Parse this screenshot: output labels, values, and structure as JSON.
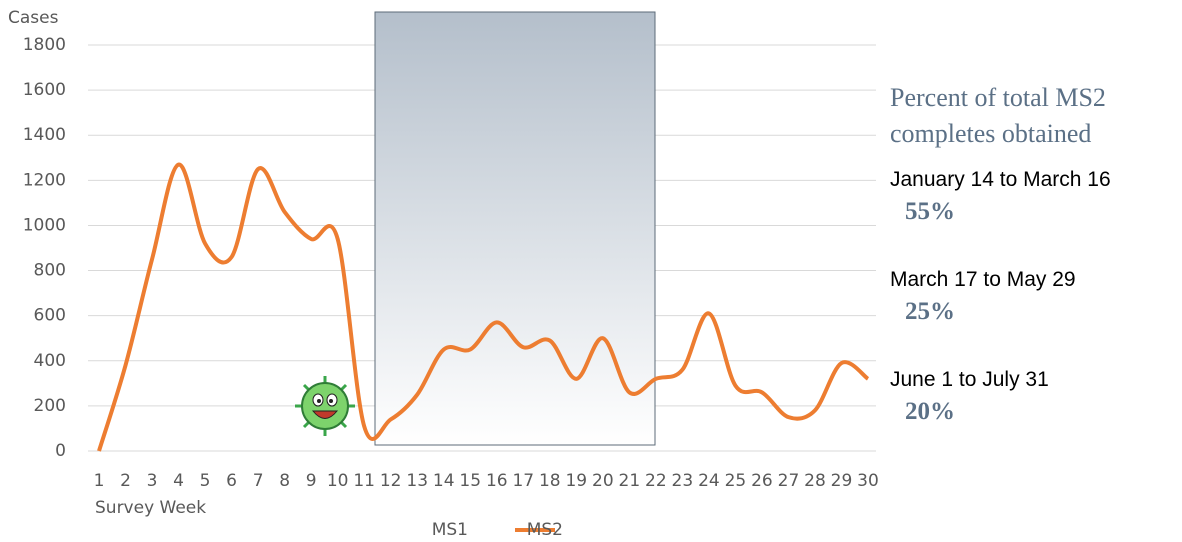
{
  "chart_data": {
    "type": "line",
    "y_label": "Cases",
    "x_label": "Survey Week",
    "x": [
      1,
      2,
      3,
      4,
      5,
      6,
      7,
      8,
      9,
      10,
      11,
      12,
      13,
      14,
      15,
      16,
      17,
      18,
      19,
      20,
      21,
      22,
      23,
      24,
      25,
      26,
      27,
      28,
      29,
      30
    ],
    "xlim": [
      1,
      30
    ],
    "xticks": [
      1,
      2,
      3,
      4,
      5,
      6,
      7,
      8,
      9,
      10,
      11,
      12,
      13,
      14,
      15,
      16,
      17,
      18,
      19,
      20,
      21,
      22,
      23,
      24,
      25,
      26,
      27,
      28,
      29,
      30
    ],
    "ylim": [
      0,
      1800
    ],
    "yticks": [
      0,
      200,
      400,
      600,
      800,
      1000,
      1200,
      1400,
      1600,
      1800
    ],
    "grid": true,
    "series": [
      {
        "name": "MS1",
        "color": "#ffffff",
        "values": [
          null,
          null,
          null,
          null,
          null,
          null,
          null,
          null,
          null,
          null,
          null,
          null,
          null,
          null,
          null,
          null,
          null,
          null,
          null,
          null,
          null,
          null,
          null,
          null,
          null,
          null,
          null,
          null,
          null,
          null
        ]
      },
      {
        "name": "MS2",
        "color": "#ed7d31",
        "values": [
          0,
          380,
          850,
          1270,
          920,
          860,
          1250,
          1060,
          940,
          940,
          110,
          140,
          250,
          450,
          450,
          570,
          460,
          490,
          320,
          500,
          260,
          320,
          360,
          610,
          290,
          260,
          150,
          180,
          390,
          320
        ]
      }
    ],
    "legend": "bottom",
    "side_title": "Percent of total MS2 completes obtained",
    "annotations": [
      {
        "period": "January 14 to March 16",
        "percent": "55%"
      },
      {
        "period": "March 17 to May 29",
        "percent": "25%"
      },
      {
        "period": "June 1 to July 31",
        "percent": "20%"
      }
    ]
  }
}
